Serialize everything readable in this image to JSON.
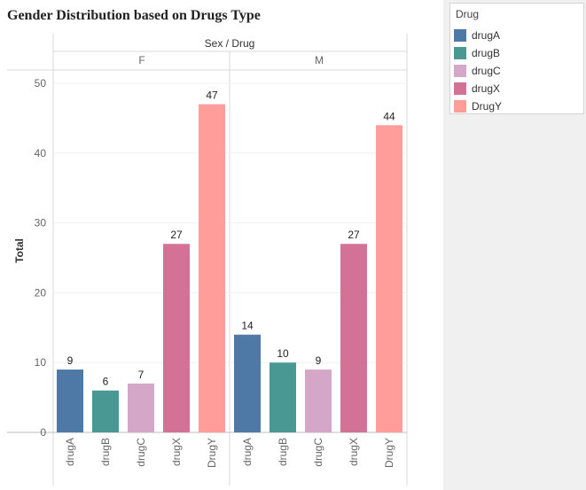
{
  "page_title": "Gender Distribution based on Drugs Type",
  "legend": {
    "title": "Drug",
    "items": [
      {
        "label": "drugA",
        "color": "#4e79a7"
      },
      {
        "label": "drugB",
        "color": "#499894"
      },
      {
        "label": "drugC",
        "color": "#d4a6c8"
      },
      {
        "label": "drugX",
        "color": "#d37295"
      },
      {
        "label": "DrugY",
        "color": "#ff9d9a"
      }
    ]
  },
  "chart_data": {
    "type": "bar",
    "title": "Gender Distribution based on Drugs Type",
    "header": "Sex / Drug",
    "ylabel": "Total",
    "ylim": [
      0,
      50
    ],
    "yticks": [
      0,
      10,
      20,
      30,
      40,
      50
    ],
    "categories": [
      "drugA",
      "drugB",
      "drugC",
      "drugX",
      "DrugY"
    ],
    "groups": [
      {
        "name": "F",
        "values": [
          9,
          6,
          7,
          27,
          47
        ]
      },
      {
        "name": "M",
        "values": [
          14,
          10,
          9,
          27,
          44
        ]
      }
    ],
    "colors": [
      "#4e79a7",
      "#499894",
      "#d4a6c8",
      "#d37295",
      "#ff9d9a"
    ]
  }
}
